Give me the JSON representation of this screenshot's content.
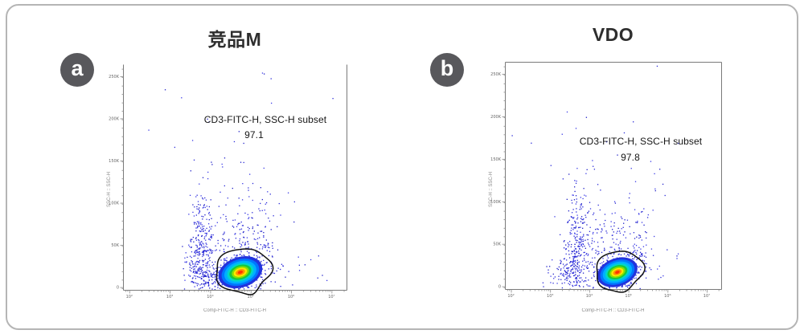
{
  "figure": {
    "background": "#ffffff",
    "border_color": "#b5b5b5"
  },
  "panels": [
    {
      "badge_label": "a",
      "title": "竞品M",
      "subset_label": "CD3-FITC-H, SSC-H subset",
      "subset_value": "97.1",
      "x_axis_label": "Comp-FITC-H :: CD3-FITC-H",
      "y_axis_label": "SSC-H :: SSC-H"
    },
    {
      "badge_label": "b",
      "title": "VDO",
      "subset_label": "CD3-FITC-H, SSC-H subset",
      "subset_value": "97.8",
      "x_axis_label": "Comp-FITC-H :: CD3-FITC-H",
      "y_axis_label": "SSC-H :: SSC-H"
    }
  ],
  "colors": {
    "badge_bg": "#58585c",
    "title": "#2e2e2e",
    "annotation": "#161616",
    "axis": "#7a7a7a",
    "tick_label": "#666666",
    "dot_blue": "#2a2ad8",
    "gate_outline": "#111111",
    "density_scale": [
      "#2233dd",
      "#0077ff",
      "#00b0ff",
      "#00d8c8",
      "#19c83c",
      "#8ce000",
      "#ffe800",
      "#ff9000",
      "#ff3300"
    ]
  },
  "chart_data": [
    {
      "type": "scatter",
      "subtype": "flow-cytometry-pseudocolor-density",
      "title": "竞品M",
      "gate": {
        "label": "CD3-FITC-H, SSC-H subset",
        "percent": 97.1
      },
      "xlabel": "Comp-FITC-H :: CD3-FITC-H",
      "ylabel": "SSC-H :: SSC-H",
      "x_scale": "log",
      "x_tick_labels": [
        "10²",
        "10³",
        "10⁴",
        "10⁵",
        "10⁶",
        "10⁷"
      ],
      "y_tick_labels": [
        "250K",
        "200K",
        "150K",
        "100K",
        "50K",
        "0"
      ],
      "grid": false,
      "legend": "none",
      "main_population": {
        "x_approx": "1×10⁵ (CD3-FITC-H)",
        "y_approx": "40K (SSC-H)"
      },
      "render": {
        "frame": {
          "top": false,
          "right": true,
          "left": true,
          "bottom": true
        },
        "xt_first": 0.028,
        "xt_step": 0.181,
        "yt_first": 0.053,
        "yt_step": 0.187,
        "clusters": [
          [
            0.345,
            0.89,
            0.032,
            0.078,
            220,
            11
          ],
          [
            0.353,
            0.712,
            0.025,
            0.089,
            120,
            12
          ],
          [
            0.392,
            0.943,
            0.05,
            0.036,
            80,
            13
          ],
          [
            0.475,
            0.783,
            0.079,
            0.089,
            70,
            14
          ],
          [
            0.547,
            0.747,
            0.065,
            0.057,
            60,
            15
          ],
          [
            0.637,
            0.747,
            0.029,
            0.107,
            45,
            16
          ],
          [
            0.493,
            0.516,
            0.126,
            0.1,
            35,
            17
          ],
          [
            0.493,
            0.249,
            0.216,
            0.125,
            14,
            18
          ],
          [
            0.745,
            0.89,
            0.09,
            0.053,
            18,
            19
          ]
        ],
        "blob": {
          "fx": 0.525,
          "fy": 0.922,
          "rot": -18,
          "scale": 1.0,
          "speckle": [
            [
              15,
              10,
              420,
              21
            ],
            [
              23,
              14,
              160,
              22
            ]
          ],
          "layers": [
            [
              28,
              19
            ],
            [
              24,
              16
            ],
            [
              20.5,
              13.5
            ],
            [
              17,
              11
            ],
            [
              14,
              9
            ],
            [
              11,
              7
            ],
            [
              8.5,
              5.2
            ],
            [
              6,
              3.6
            ],
            [
              3.2,
              1.9
            ]
          ]
        },
        "gate": {
          "fx": 0.536,
          "fy": 0.911,
          "rx": 35,
          "ry": 26,
          "rot": -10,
          "spike": 7,
          "spike_angle": 1.35
        }
      }
    },
    {
      "type": "scatter",
      "subtype": "flow-cytometry-pseudocolor-density",
      "title": "VDO",
      "gate": {
        "label": "CD3-FITC-H, SSC-H subset",
        "percent": 97.8
      },
      "xlabel": "Comp-FITC-H :: CD3-FITC-H",
      "ylabel": "SSC-H :: SSC-H",
      "x_scale": "log",
      "x_tick_labels": [
        "10²",
        "10³",
        "10⁴",
        "10⁵",
        "10⁶",
        "10⁷"
      ],
      "y_tick_labels": [
        "250K",
        "200K",
        "150K",
        "100K",
        "50K",
        "0"
      ],
      "grid": false,
      "legend": "none",
      "main_population": {
        "x_approx": "1×10⁵ (CD3-FITC-H)",
        "y_approx": "40K (SSC-H)"
      },
      "render": {
        "frame": {
          "top": true,
          "right": true,
          "left": true,
          "bottom": true
        },
        "xt_first": 0.028,
        "xt_step": 0.181,
        "yt_first": 0.053,
        "yt_step": 0.187,
        "clusters": [
          [
            0.331,
            0.876,
            0.03,
            0.078,
            200,
            41
          ],
          [
            0.338,
            0.71,
            0.026,
            0.08,
            100,
            42
          ],
          [
            0.268,
            0.929,
            0.045,
            0.035,
            70,
            43
          ],
          [
            0.435,
            0.788,
            0.067,
            0.078,
            60,
            44
          ],
          [
            0.528,
            0.753,
            0.059,
            0.053,
            55,
            45
          ],
          [
            0.621,
            0.77,
            0.03,
            0.099,
            40,
            46
          ],
          [
            0.472,
            0.523,
            0.13,
            0.099,
            30,
            47
          ],
          [
            0.49,
            0.258,
            0.204,
            0.124,
            10,
            48
          ],
          [
            0.732,
            0.894,
            0.074,
            0.042,
            12,
            49
          ]
        ],
        "blob": {
          "fx": 0.52,
          "fy": 0.926,
          "rot": -20,
          "scale": 0.92,
          "speckle": [
            [
              15,
              10,
              380,
              51
            ],
            [
              22,
              13,
              140,
              52
            ]
          ],
          "layers": [
            [
              28,
              19
            ],
            [
              24,
              16
            ],
            [
              20.5,
              13.5
            ],
            [
              17,
              11
            ],
            [
              14,
              9
            ],
            [
              11,
              7
            ],
            [
              8.5,
              5.2
            ],
            [
              6,
              3.6
            ],
            [
              3.2,
              1.9
            ]
          ]
        },
        "gate": {
          "fx": 0.528,
          "fy": 0.919,
          "rx": 30,
          "ry": 24,
          "rot": -15,
          "spike": 3,
          "spike_angle": 1.6
        }
      }
    }
  ]
}
